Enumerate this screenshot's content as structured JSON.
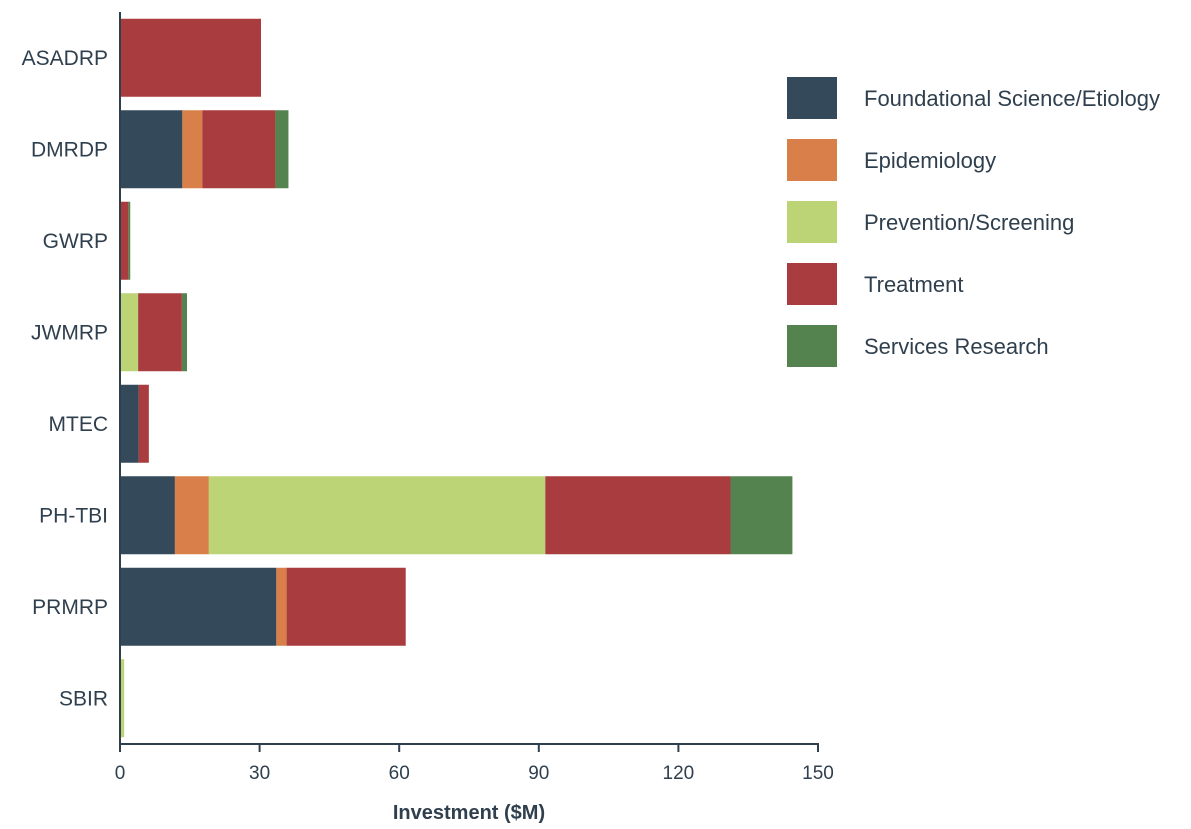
{
  "chart_data": {
    "type": "bar",
    "orientation": "horizontal",
    "stacked": true,
    "categories": [
      "ASADRP",
      "DMRDP",
      "GWRP",
      "JWMRP",
      "MTEC",
      "PH-TBI",
      "PRMRP",
      "SBIR"
    ],
    "series": [
      {
        "name": "Foundational Science/Etiology",
        "color": "#34495a",
        "values": [
          0,
          13.4,
          0,
          0,
          4,
          11.8,
          33.6,
          0
        ]
      },
      {
        "name": "Epidemiology",
        "color": "#d9804a",
        "values": [
          0,
          4.3,
          0,
          0,
          0,
          7.3,
          2.2,
          0
        ]
      },
      {
        "name": "Prevention/Screening",
        "color": "#bcd475",
        "values": [
          0,
          0,
          0,
          3.9,
          0,
          72.3,
          0,
          0.9
        ]
      },
      {
        "name": "Treatment",
        "color": "#a83c3f",
        "values": [
          30.3,
          15.7,
          1.8,
          9.4,
          2.2,
          39.8,
          25.6,
          0
        ]
      },
      {
        "name": "Services Research",
        "color": "#55834f",
        "values": [
          0,
          2.8,
          0.4,
          1.1,
          0,
          13.3,
          0,
          0
        ]
      }
    ],
    "xlabel": "Investment ($M)",
    "ylabel": "",
    "xlim": [
      0,
      150
    ],
    "xticks": [
      0,
      30,
      60,
      90,
      120,
      150
    ],
    "grid": false,
    "legend_position": "right"
  }
}
